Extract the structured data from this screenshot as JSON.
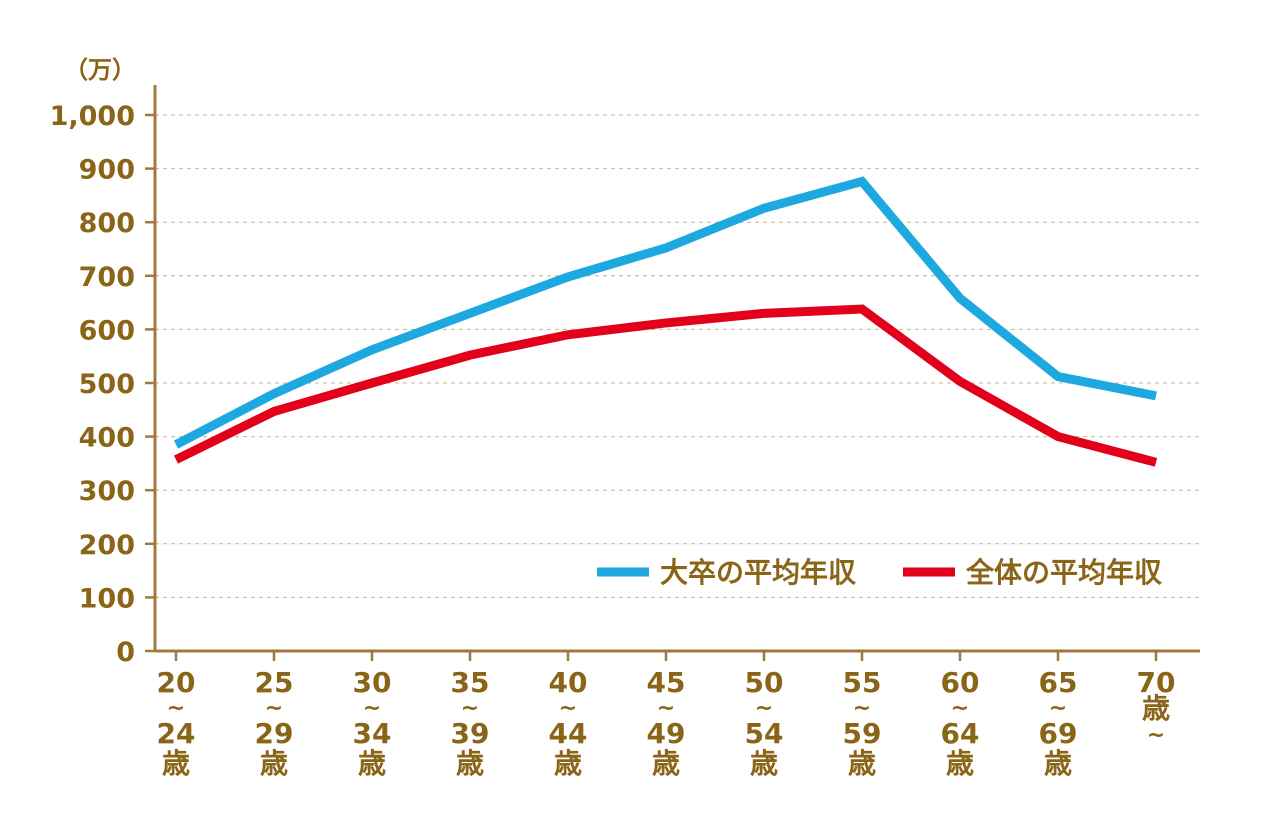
{
  "chart_data": {
    "type": "line",
    "y_unit": "（万）",
    "ylim": [
      0,
      1000
    ],
    "y_ticks": [
      {
        "value": 0,
        "label": "0"
      },
      {
        "value": 100,
        "label": "100"
      },
      {
        "value": 200,
        "label": "200"
      },
      {
        "value": 300,
        "label": "300"
      },
      {
        "value": 400,
        "label": "400"
      },
      {
        "value": 500,
        "label": "500"
      },
      {
        "value": 600,
        "label": "600"
      },
      {
        "value": 700,
        "label": "700"
      },
      {
        "value": 800,
        "label": "800"
      },
      {
        "value": 900,
        "label": "900"
      },
      {
        "value": 1000,
        "label": "1,000"
      }
    ],
    "grid": true,
    "legend_position": "bottom-right",
    "categories": [
      [
        "20",
        "~",
        "24",
        "歳"
      ],
      [
        "25",
        "~",
        "29",
        "歳"
      ],
      [
        "30",
        "~",
        "34",
        "歳"
      ],
      [
        "35",
        "~",
        "39",
        "歳"
      ],
      [
        "40",
        "~",
        "44",
        "歳"
      ],
      [
        "45",
        "~",
        "49",
        "歳"
      ],
      [
        "50",
        "~",
        "54",
        "歳"
      ],
      [
        "55",
        "~",
        "59",
        "歳"
      ],
      [
        "60",
        "~",
        "64",
        "歳"
      ],
      [
        "65",
        "~",
        "69",
        "歳"
      ],
      [
        "70",
        "歳",
        "~"
      ]
    ],
    "series": [
      {
        "name": "大卒の平均年収",
        "color": "#1ea8e0",
        "values": [
          385,
          480,
          562,
          630,
          698,
          752,
          826,
          876,
          658,
          512,
          476
        ]
      },
      {
        "name": "全体の平均年収",
        "color": "#e2001a",
        "values": [
          357,
          447,
          500,
          552,
          590,
          612,
          630,
          638,
          503,
          400,
          352
        ]
      }
    ],
    "axis_color": "#a0793d",
    "text_color": "#8a6417"
  }
}
